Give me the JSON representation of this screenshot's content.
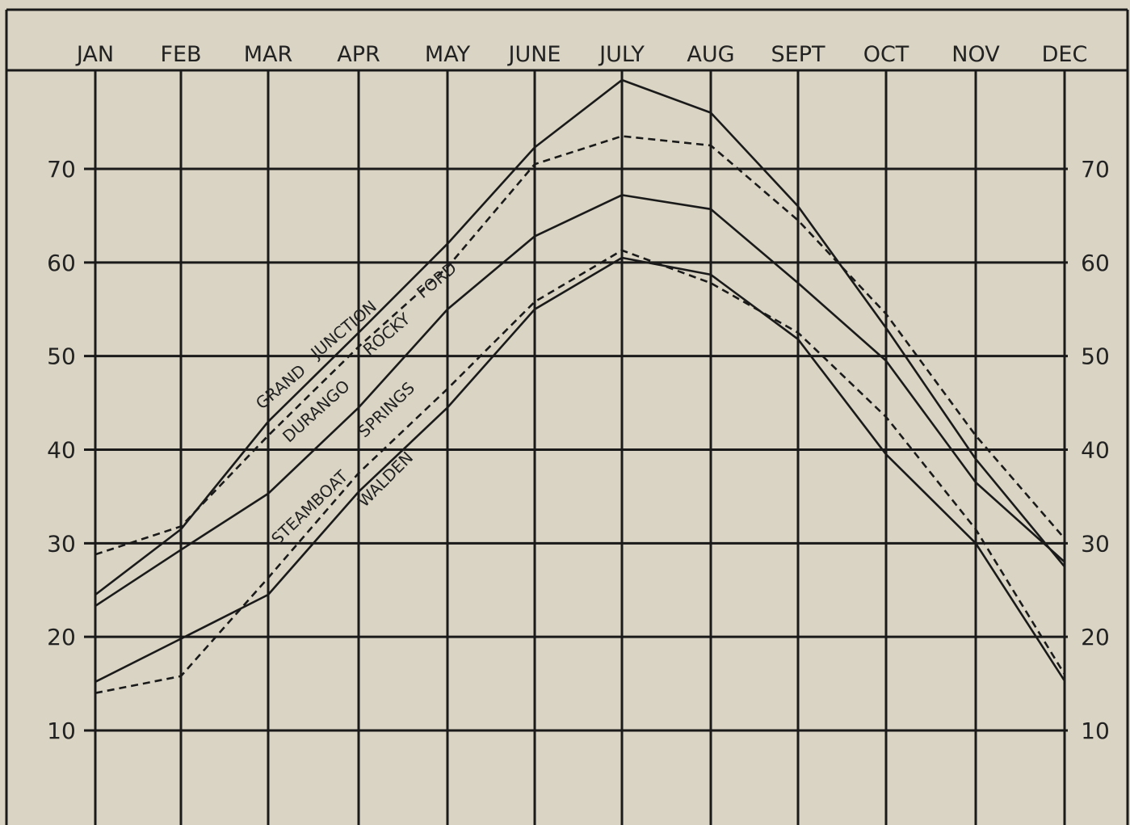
{
  "chart_data": {
    "type": "line",
    "title": "",
    "xlabel": "",
    "ylabel": "",
    "categories": [
      "JAN",
      "FEB",
      "MAR",
      "APR",
      "MAY",
      "JUNE",
      "JULY",
      "AUG",
      "SEPT",
      "OCT",
      "NOV",
      "DEC"
    ],
    "ylim": [
      2,
      81
    ],
    "y_ticks": [
      10,
      20,
      30,
      40,
      50,
      60,
      70
    ],
    "grid": true,
    "legend": "none",
    "series": [
      {
        "name": "GRAND JUNCTION",
        "style": "solid",
        "values": [
          24.5,
          31.5,
          43,
          52.5,
          62,
          72.3,
          79.5,
          76,
          66,
          53,
          39,
          27.5
        ]
      },
      {
        "name": "ROCKY FORD",
        "style": "dashed",
        "values": [
          28.8,
          31.8,
          41.5,
          51,
          59.5,
          70.5,
          73.5,
          72.5,
          64.5,
          54.5,
          41.5,
          30.5
        ]
      },
      {
        "name": "DURANGO",
        "style": "solid",
        "values": [
          23.3,
          29.3,
          35.3,
          44.5,
          55,
          62.8,
          67.2,
          65.7,
          57.8,
          49.5,
          36.5,
          28
        ]
      },
      {
        "name": "STEAMBOAT SPRINGS",
        "style": "dashed",
        "values": [
          14,
          15.8,
          26.3,
          37.5,
          46.5,
          55.8,
          61.3,
          57.8,
          52.5,
          43.5,
          31.5,
          16
        ]
      },
      {
        "name": "WALDEN",
        "style": "solid",
        "values": [
          15.2,
          19.8,
          24.5,
          35.5,
          44.5,
          55,
          60.5,
          58.7,
          51.8,
          39.5,
          30,
          15.3
        ]
      }
    ]
  }
}
